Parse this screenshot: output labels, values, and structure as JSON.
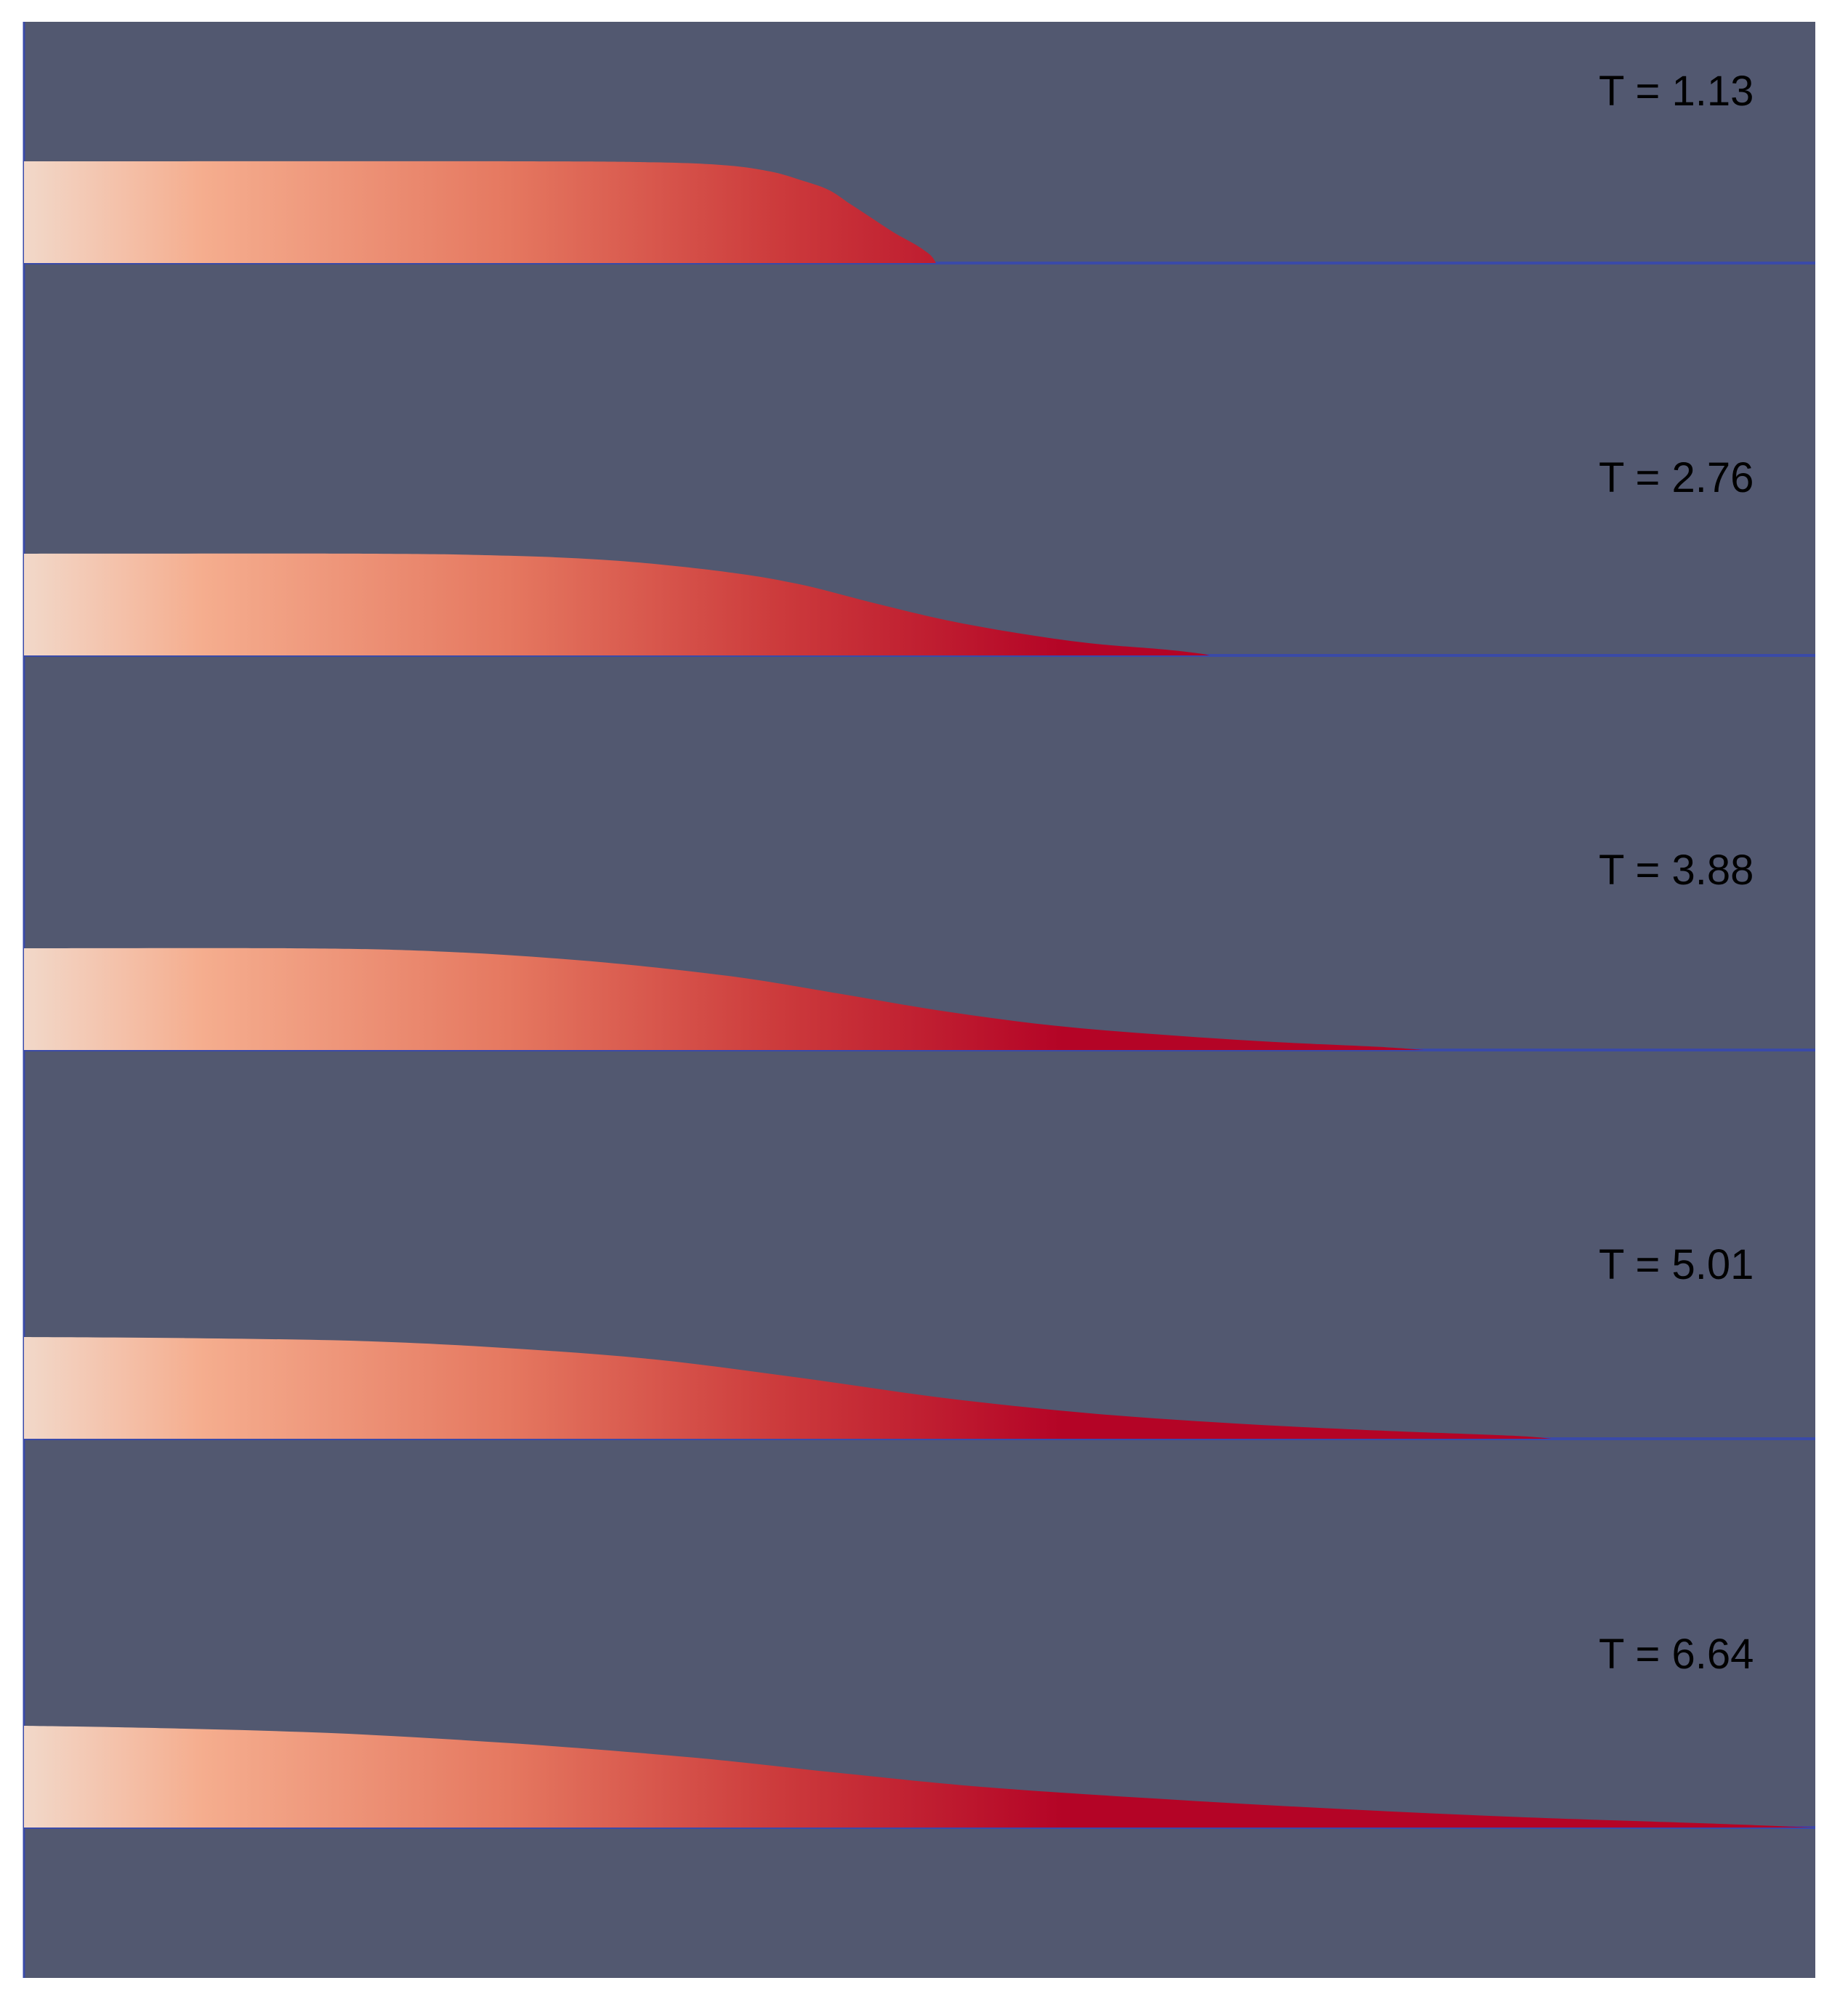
{
  "view": {
    "background_color": "#525870",
    "substrate_line_color": "#3a4aa8",
    "colormap": [
      "#f2d8c9",
      "#f5ad8e",
      "#e57860",
      "#cc3b3c",
      "#b40426"
    ]
  },
  "snapshots": [
    {
      "label": "T = 1.13",
      "time": 1.13
    },
    {
      "label": "T = 2.76",
      "time": 2.76
    },
    {
      "label": "T = 3.88",
      "time": 3.88
    },
    {
      "label": "T = 5.01",
      "time": 5.01
    },
    {
      "label": "T = 6.64",
      "time": 6.64
    }
  ]
}
